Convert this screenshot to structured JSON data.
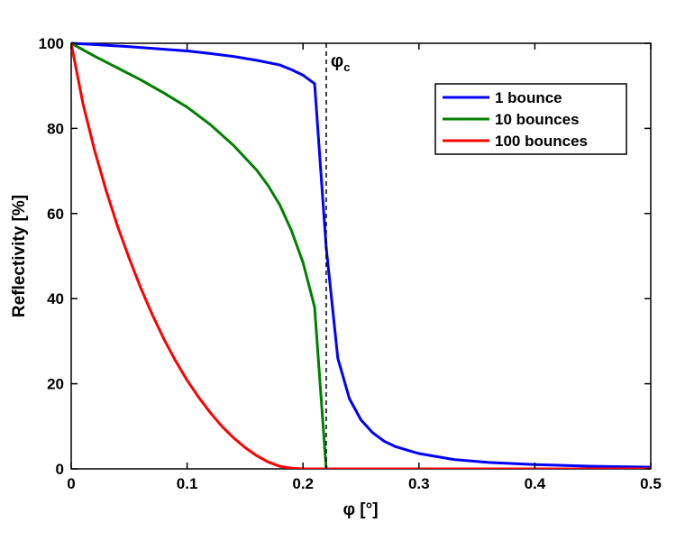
{
  "chart_data": {
    "type": "line",
    "xlabel": "φ [°]",
    "ylabel": "Reflectivity [%]",
    "xlim": [
      0,
      0.5
    ],
    "ylim": [
      0,
      100
    ],
    "xticks": [
      0,
      0.1,
      0.2,
      0.3,
      0.4,
      0.5
    ],
    "xtick_labels": [
      "0",
      "0.1",
      "0.2",
      "0.3",
      "0.4",
      "0.5"
    ],
    "yticks": [
      0,
      20,
      40,
      60,
      80,
      100
    ],
    "ytick_labels": [
      "0",
      "20",
      "40",
      "60",
      "80",
      "100"
    ],
    "grid": false,
    "legend_position": "top-right",
    "series": [
      {
        "name": "1 bounce",
        "color": "#0000ff",
        "x": [
          0,
          0.02,
          0.05,
          0.08,
          0.1,
          0.12,
          0.14,
          0.16,
          0.18,
          0.19,
          0.2,
          0.21,
          0.22,
          0.23,
          0.24,
          0.25,
          0.26,
          0.27,
          0.28,
          0.3,
          0.33,
          0.36,
          0.4,
          0.45,
          0.5
        ],
        "y": [
          100,
          99.7,
          99.2,
          98.6,
          98.2,
          97.6,
          96.9,
          96.0,
          94.9,
          93.8,
          92.5,
          90.5,
          52,
          26,
          16.5,
          11.5,
          8.5,
          6.5,
          5.2,
          3.6,
          2.2,
          1.5,
          1.0,
          0.6,
          0.4
        ]
      },
      {
        "name": "10 bounces",
        "color": "#008000",
        "x": [
          0,
          0.02,
          0.04,
          0.06,
          0.08,
          0.1,
          0.12,
          0.14,
          0.16,
          0.17,
          0.18,
          0.19,
          0.2,
          0.21,
          0.22,
          0.25,
          0.3,
          0.4,
          0.5
        ],
        "y": [
          100,
          97.0,
          94.2,
          91.4,
          88.3,
          85.0,
          80.9,
          76.0,
          70.2,
          66.5,
          62.0,
          56.0,
          48.5,
          38,
          0,
          0,
          0,
          0,
          0
        ]
      },
      {
        "name": "100 bounces",
        "color": "#ff0000",
        "x": [
          0,
          0.01,
          0.02,
          0.03,
          0.04,
          0.05,
          0.06,
          0.07,
          0.08,
          0.09,
          0.1,
          0.11,
          0.12,
          0.13,
          0.14,
          0.15,
          0.16,
          0.17,
          0.18,
          0.19,
          0.2,
          0.21,
          0.22,
          0.3,
          0.4,
          0.5
        ],
        "y": [
          100,
          86.0,
          75.0,
          65.5,
          57.0,
          49.5,
          42.5,
          36.2,
          30.5,
          25.4,
          20.8,
          16.8,
          13.2,
          10.0,
          7.3,
          5.0,
          3.1,
          1.6,
          0.6,
          0.15,
          0,
          0,
          0,
          0,
          0,
          0
        ]
      }
    ],
    "annotations": [
      {
        "type": "vertical-dashed-line",
        "x": 0.22,
        "label": "φ",
        "label_subscript": "c"
      }
    ]
  }
}
